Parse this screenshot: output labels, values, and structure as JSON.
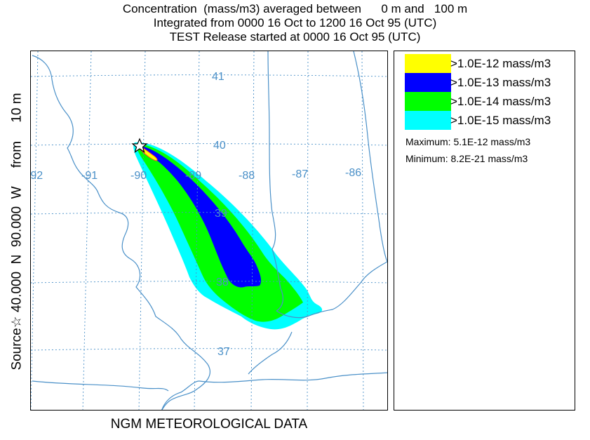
{
  "header": {
    "line1": "Concentration  (mass/m3) averaged between      0 m and   100 m",
    "line2": "Integrated from 0000 16 Oct to 1200 16 Oct 95 (UTC)",
    "line3": "TEST Release started at 0000 16 Oct 95 (UTC)"
  },
  "side_label": "Source☆ 40.000  N  90.000  W     from     10 m",
  "footer": "NGM  METEOROLOGICAL DATA",
  "map": {
    "longitude_labels": [
      "-92",
      "-91",
      "-90",
      "-89",
      "-88",
      "-87",
      "-86"
    ],
    "latitude_labels": [
      "41",
      "40",
      "39",
      "38",
      "37"
    ],
    "grid_color": "#4a90c8",
    "border_color": "#4a90c8",
    "source_marker": "star-icon"
  },
  "legend": {
    "entries": [
      {
        "label": ">1.0E-12 mass/m3",
        "color": "#ffff00"
      },
      {
        "label": ">1.0E-13 mass/m3",
        "color": "#0000ff"
      },
      {
        "label": ">1.0E-14 mass/m3",
        "color": "#00ff00"
      },
      {
        "label": ">1.0E-15 mass/m3",
        "color": "#00ffff"
      }
    ],
    "maximum": "Maximum: 5.1E-12 mass/m3",
    "minimum": "Minimum: 8.2E-21 mass/m3"
  }
}
